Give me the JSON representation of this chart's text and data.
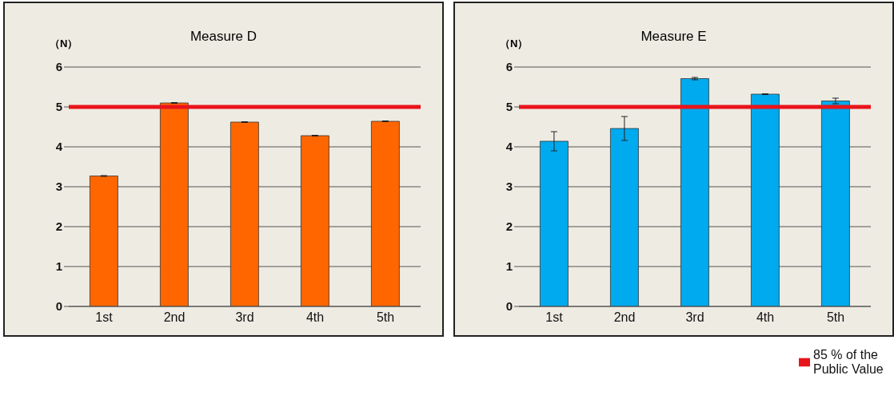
{
  "chart_data": [
    {
      "type": "bar",
      "title": "Measure D",
      "ylabel": "（N）",
      "categories": [
        "1st",
        "2nd",
        "3rd",
        "4th",
        "5th"
      ],
      "series": [
        {
          "color": "#ff6600",
          "values": [
            3.27,
            5.1,
            4.62,
            4.28,
            4.64
          ],
          "errors": [
            0.01,
            0.01,
            0.01,
            0.01,
            0.01
          ]
        }
      ],
      "ylim": [
        0,
        6
      ],
      "yticks": [
        0,
        1,
        2,
        3,
        4,
        5,
        6
      ],
      "grid": "y",
      "ref_lines": [
        {
          "axis": "y",
          "value": 5,
          "color": "#e8141b"
        }
      ]
    },
    {
      "type": "bar",
      "title": "Measure E",
      "ylabel": "（N）",
      "categories": [
        "1st",
        "2nd",
        "3rd",
        "4th",
        "5th"
      ],
      "series": [
        {
          "color": "#00aaee",
          "values": [
            4.14,
            4.46,
            5.71,
            5.32,
            5.15
          ],
          "errors": [
            0.24,
            0.3,
            0.03,
            0.01,
            0.07
          ]
        }
      ],
      "ylim": [
        0,
        6
      ],
      "yticks": [
        0,
        1,
        2,
        3,
        4,
        5,
        6
      ],
      "grid": "y",
      "legend": "bottom right",
      "ref_lines": [
        {
          "axis": "y",
          "value": 5,
          "color": "#e8141b",
          "label": "85 % of the Public Value"
        }
      ]
    }
  ]
}
